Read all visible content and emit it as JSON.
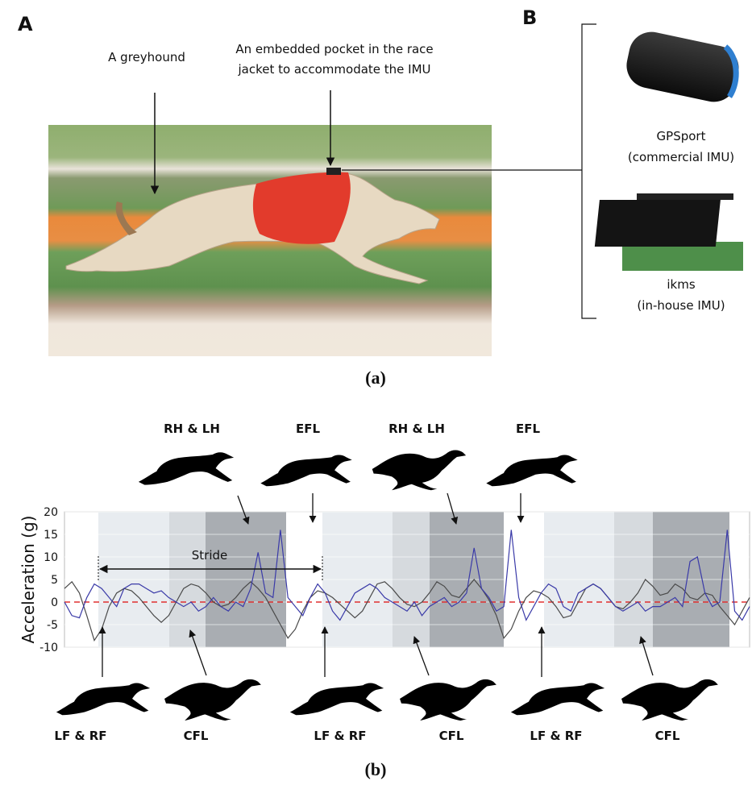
{
  "panels": [
    "A",
    "B"
  ],
  "photo": {
    "annotations": [
      "A greyhound",
      "An embedded pocket in the race",
      "jacket to accommodate the IMU"
    ]
  },
  "devices": [
    {
      "name": "GPSport",
      "description": "(commercial IMU)"
    },
    {
      "name": "ikms",
      "description": "(in-house IMU)"
    }
  ],
  "captions": [
    "(a)",
    "(b)"
  ],
  "chart_data": {
    "type": "line",
    "y_label": "Acceleration (g)",
    "ylim": [
      -10,
      20
    ],
    "yticks": [
      -10,
      -5,
      0,
      5,
      10,
      15,
      20
    ],
    "grid": true,
    "reference_line": {
      "value": 0,
      "color": "#e03030"
    },
    "stride_label": "Stride",
    "top_labels": [
      "RH & LH",
      "EFL",
      "RH & LH",
      "EFL"
    ],
    "bottom_labels": [
      "LF & RF",
      "CFL",
      "LF & RF",
      "CFL",
      "LF & RF",
      "CFL"
    ],
    "series": [
      {
        "color": "#4a4a4a",
        "values": [
          3,
          4.5,
          2,
          -3,
          -8.5,
          -6,
          -1,
          2,
          3,
          2.5,
          1,
          -1,
          -3,
          -4.5,
          -3,
          0,
          3,
          4,
          3.5,
          2,
          0,
          -1,
          -0.5,
          1,
          3,
          4.5,
          3,
          1,
          -2,
          -5,
          -8,
          -6,
          -2,
          1,
          2.5,
          2,
          1,
          -0.5,
          -2,
          -3.5,
          -2,
          1,
          4,
          4.5,
          3,
          1,
          -0.5,
          -1,
          0,
          2,
          4.5,
          3.5,
          1.5,
          1,
          3,
          5,
          3,
          0.5,
          -3,
          -8,
          -6,
          -2,
          1,
          2.5,
          2,
          1,
          -1,
          -3.5,
          -3,
          0,
          3,
          4,
          3,
          1,
          -1,
          -1.5,
          0,
          2,
          5,
          3.5,
          1.5,
          2,
          4,
          3,
          1,
          0.5,
          2,
          1.5,
          -1,
          -3,
          -5,
          -2,
          1
        ]
      },
      {
        "color": "#3a3aa8",
        "values": [
          0,
          -3,
          -3.5,
          1,
          4,
          3,
          1,
          -1,
          3,
          4,
          4,
          3,
          2,
          2.5,
          1,
          0,
          -1,
          0,
          -2,
          -1,
          1,
          -1,
          -2,
          0,
          -1,
          3,
          11,
          2,
          1,
          16,
          1,
          -1,
          -3,
          1,
          4,
          2,
          -2,
          -4,
          -1,
          2,
          3,
          4,
          3,
          1,
          0,
          -1,
          -2,
          0,
          -3,
          -1,
          0,
          1,
          -1,
          0,
          2,
          12,
          3,
          1,
          -2,
          -1,
          16,
          1,
          -4,
          -1,
          2,
          4,
          3,
          -1,
          -2,
          2,
          3,
          4,
          3,
          1,
          -1,
          -2,
          -1,
          0,
          -2,
          -1,
          -1,
          0,
          1,
          -1,
          9,
          10,
          2,
          -1,
          0,
          16,
          -2,
          -4,
          -1
        ]
      }
    ]
  }
}
